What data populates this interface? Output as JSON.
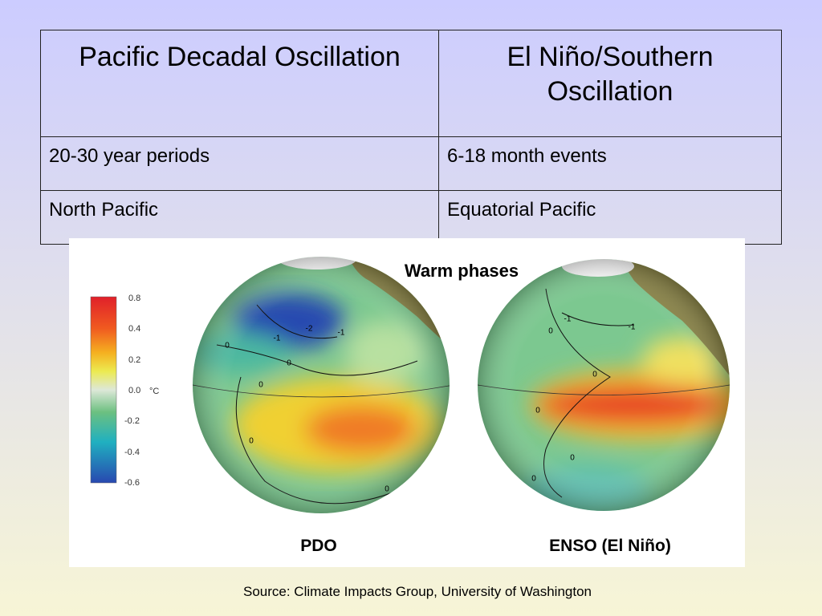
{
  "table": {
    "header": [
      "Pacific Decadal Oscillation",
      "El Niño/Southern Oscillation"
    ],
    "rows": [
      [
        "20-30 year periods",
        "6-18 month events"
      ],
      [
        "North Pacific",
        "Equatorial Pacific"
      ]
    ]
  },
  "figure": {
    "title": "Warm phases",
    "colorbar": {
      "ticks": [
        "0.8",
        "0.4",
        "0.2",
        "0.0",
        "-0.2",
        "-0.4",
        "-0.6"
      ],
      "unit": "°C"
    },
    "panels": [
      {
        "label": "PDO",
        "contours": [
          "-1",
          "-2",
          "-1",
          "0",
          "0",
          "0",
          "0",
          "0"
        ]
      },
      {
        "label": "ENSO (El Niño)",
        "contours": [
          "-1",
          "-1",
          "0",
          "0",
          "0",
          "0",
          "0"
        ]
      }
    ]
  },
  "source": "Source: Climate Impacts Group, University of Washington"
}
